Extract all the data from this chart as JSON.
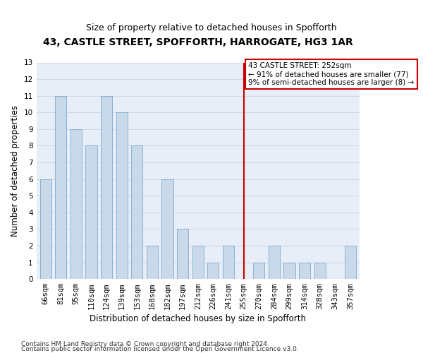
{
  "title": "43, CASTLE STREET, SPOFFORTH, HARROGATE, HG3 1AR",
  "subtitle": "Size of property relative to detached houses in Spofforth",
  "xlabel": "Distribution of detached houses by size in Spofforth",
  "ylabel": "Number of detached properties",
  "categories": [
    "66sqm",
    "81sqm",
    "95sqm",
    "110sqm",
    "124sqm",
    "139sqm",
    "153sqm",
    "168sqm",
    "182sqm",
    "197sqm",
    "212sqm",
    "226sqm",
    "241sqm",
    "255sqm",
    "270sqm",
    "284sqm",
    "299sqm",
    "314sqm",
    "328sqm",
    "343sqm",
    "357sqm"
  ],
  "values": [
    6,
    11,
    9,
    8,
    11,
    10,
    8,
    2,
    6,
    3,
    2,
    1,
    2,
    0,
    1,
    2,
    1,
    1,
    1,
    0,
    2
  ],
  "bar_color": "#c9d9ea",
  "bar_edge_color": "#7baad0",
  "vline_index": 13,
  "vline_color": "#cc0000",
  "annotation_text": "43 CASTLE STREET: 252sqm\n← 91% of detached houses are smaller (77)\n9% of semi-detached houses are larger (8) →",
  "annotation_box_color": "#ffffff",
  "annotation_box_edge": "#cc0000",
  "ylim": [
    0,
    13
  ],
  "yticks": [
    0,
    1,
    2,
    3,
    4,
    5,
    6,
    7,
    8,
    9,
    10,
    11,
    12,
    13
  ],
  "footer_line1": "Contains HM Land Registry data © Crown copyright and database right 2024.",
  "footer_line2": "Contains public sector information licensed under the Open Government Licence v3.0.",
  "bg_color": "#e8eef7",
  "grid_color": "#d0d8e8",
  "title_fontsize": 10,
  "subtitle_fontsize": 9,
  "xlabel_fontsize": 8.5,
  "ylabel_fontsize": 8.5,
  "tick_fontsize": 7.5,
  "footer_fontsize": 6.5,
  "bar_width": 0.75
}
